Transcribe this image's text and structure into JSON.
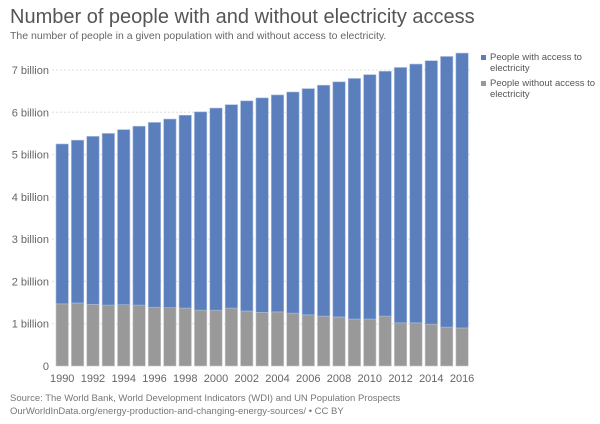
{
  "title": "Number of people with and without electricity access",
  "subtitle": "The number of people in a given population with and without access to electricity.",
  "source_line1": "Source: The World Bank, World Development Indicators (WDI) and UN Population Prospects",
  "source_line2": "OurWorldInData.org/energy-production-and-changing-energy-sources/ • CC BY",
  "colors": {
    "with_access": "#5b7fbd",
    "without_access": "#999999",
    "grid": "#dddddd",
    "tick_text": "#666666"
  },
  "chart_data": {
    "type": "bar",
    "stacked": true,
    "title": "Number of people with and without electricity access",
    "subtitle": "The number of people in a given population with and without access to electricity.",
    "xlabel": "",
    "ylabel": "",
    "unit": "billion people",
    "ylim": [
      0,
      7
    ],
    "grid": true,
    "legend_position": "right",
    "yticks": [
      {
        "value": 0,
        "label": "0"
      },
      {
        "value": 1,
        "label": "1 billion"
      },
      {
        "value": 2,
        "label": "2 billion"
      },
      {
        "value": 3,
        "label": "3 billion"
      },
      {
        "value": 4,
        "label": "4 billion"
      },
      {
        "value": 5,
        "label": "5 billion"
      },
      {
        "value": 6,
        "label": "6 billion"
      },
      {
        "value": 7,
        "label": "7 billion"
      }
    ],
    "categories": [
      "1990",
      "1991",
      "1992",
      "1993",
      "1994",
      "1995",
      "1996",
      "1997",
      "1998",
      "1999",
      "2000",
      "2001",
      "2002",
      "2003",
      "2004",
      "2005",
      "2006",
      "2007",
      "2008",
      "2009",
      "2010",
      "2011",
      "2012",
      "2013",
      "2014",
      "2015",
      "2016"
    ],
    "xtick_labels": [
      "1990",
      "1992",
      "1994",
      "1996",
      "1998",
      "2000",
      "2002",
      "2004",
      "2006",
      "2008",
      "2010",
      "2012",
      "2014",
      "2016"
    ],
    "series": [
      {
        "name": "People without access to electricity",
        "key": "without_access",
        "values": [
          1.47,
          1.49,
          1.46,
          1.44,
          1.45,
          1.44,
          1.39,
          1.38,
          1.37,
          1.32,
          1.32,
          1.37,
          1.3,
          1.27,
          1.28,
          1.25,
          1.21,
          1.18,
          1.16,
          1.11,
          1.11,
          1.18,
          1.02,
          1.02,
          0.99,
          0.92,
          0.9
        ]
      },
      {
        "name": "People with access to electricity",
        "key": "with_access",
        "values": [
          3.78,
          3.85,
          3.97,
          4.06,
          4.14,
          4.23,
          4.37,
          4.46,
          4.56,
          4.69,
          4.78,
          4.81,
          4.97,
          5.07,
          5.13,
          5.23,
          5.35,
          5.46,
          5.56,
          5.69,
          5.78,
          5.79,
          6.04,
          6.12,
          6.23,
          6.4,
          6.5
        ]
      }
    ],
    "totals": [
      5.25,
      5.34,
      5.43,
      5.5,
      5.59,
      5.67,
      5.76,
      5.84,
      5.93,
      6.01,
      6.1,
      6.18,
      6.27,
      6.34,
      6.41,
      6.48,
      6.56,
      6.64,
      6.72,
      6.8,
      6.89,
      6.97,
      7.06,
      7.14,
      7.22,
      7.32,
      7.4
    ]
  },
  "legend": [
    {
      "label": "People with access to electricity",
      "key": "with_access"
    },
    {
      "label": "People without access to electricity",
      "key": "without_access"
    }
  ]
}
